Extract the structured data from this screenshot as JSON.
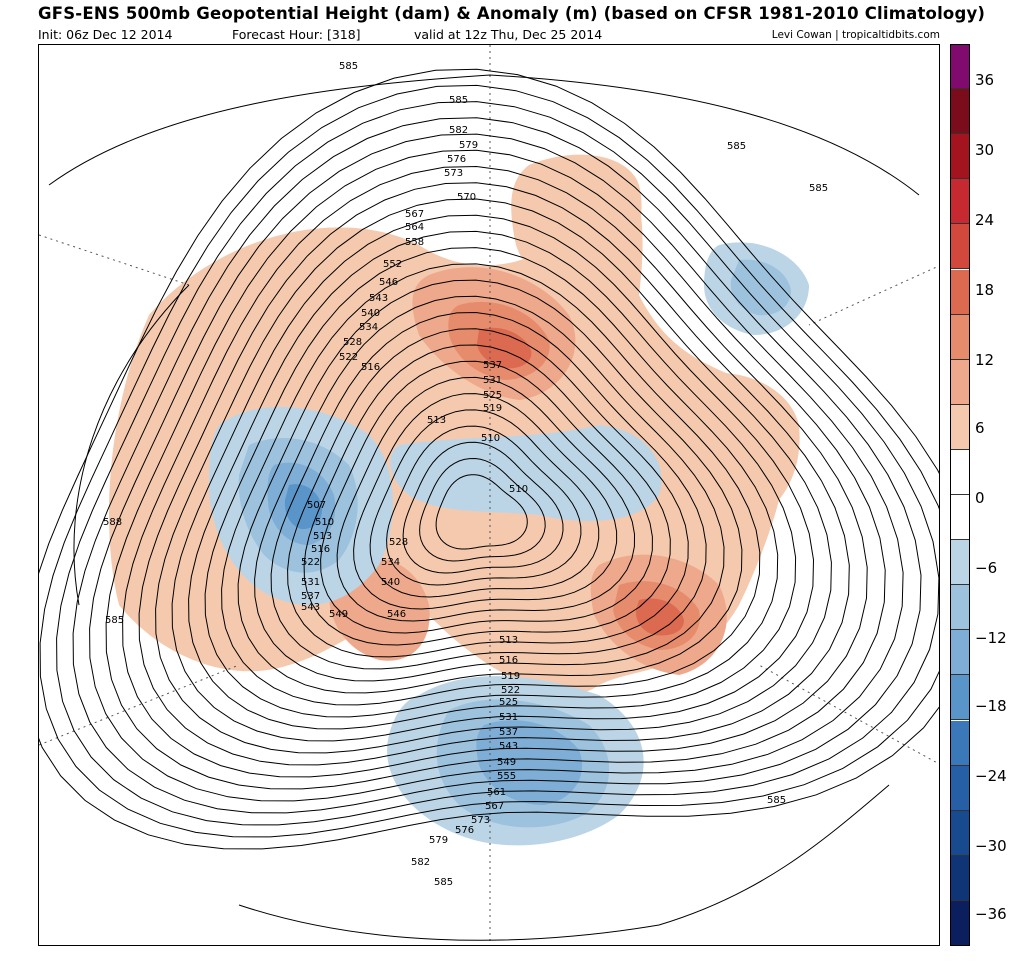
{
  "header": {
    "title": "GFS-ENS 500mb Geopotential Height (dam) & Anomaly (m) (based on CFSR 1981-2010 Climatology)",
    "init": "Init: 06z Dec 12 2014",
    "forecast_hour": "Forecast Hour: [318]",
    "valid": "valid at 12z Thu, Dec 25 2014",
    "credit": "Levi Cowan | tropicaltidbits.com"
  },
  "colorbar": {
    "segments": [
      {
        "color": "#800a6e"
      },
      {
        "color": "#7a0c1c"
      },
      {
        "color": "#a3141f"
      },
      {
        "color": "#c62a30"
      },
      {
        "color": "#d3483c"
      },
      {
        "color": "#dc6a50"
      },
      {
        "color": "#e68c6c"
      },
      {
        "color": "#eea98c"
      },
      {
        "color": "#f5c9ae"
      },
      {
        "color": "#ffffff"
      },
      {
        "color": "#ffffff"
      },
      {
        "color": "#bcd5e6"
      },
      {
        "color": "#9dc2de"
      },
      {
        "color": "#7eaed6"
      },
      {
        "color": "#5a95c9"
      },
      {
        "color": "#3a78b9"
      },
      {
        "color": "#265fa6"
      },
      {
        "color": "#174a8f"
      },
      {
        "color": "#0f3577"
      },
      {
        "color": "#0b1f5e"
      }
    ],
    "labels": [
      "36",
      "30",
      "24",
      "18",
      "12",
      "6",
      "0",
      "−6",
      "−12",
      "−18",
      "−24",
      "−30",
      "−36"
    ]
  },
  "contour_labels": [
    "585",
    "585",
    "582",
    "579",
    "576",
    "573",
    "570",
    "567",
    "564",
    "558",
    "552",
    "546",
    "543",
    "540",
    "534",
    "528",
    "522",
    "516",
    "537",
    "531",
    "525",
    "519",
    "513",
    "510",
    "510",
    "507",
    "510",
    "513",
    "516",
    "522",
    "528",
    "534",
    "540",
    "531",
    "537",
    "543",
    "549",
    "546",
    "513",
    "516",
    "519",
    "522",
    "525",
    "531",
    "537",
    "543",
    "549",
    "555",
    "561",
    "567",
    "573",
    "576",
    "579",
    "582",
    "585",
    "588",
    "585",
    "585",
    "585",
    "585"
  ],
  "anomalies": [
    {
      "sign": "positive",
      "level": 1,
      "color": "#f5c9ae"
    },
    {
      "sign": "positive",
      "level": 2,
      "color": "#eea98c"
    },
    {
      "sign": "positive",
      "level": 3,
      "color": "#e68c6c"
    },
    {
      "sign": "positive",
      "level": 4,
      "color": "#dc6a50"
    },
    {
      "sign": "negative",
      "level": 1,
      "color": "#bcd5e6"
    },
    {
      "sign": "negative",
      "level": 2,
      "color": "#9dc2de"
    },
    {
      "sign": "negative",
      "level": 3,
      "color": "#7eaed6"
    },
    {
      "sign": "negative",
      "level": 4,
      "color": "#5a95c9"
    }
  ]
}
